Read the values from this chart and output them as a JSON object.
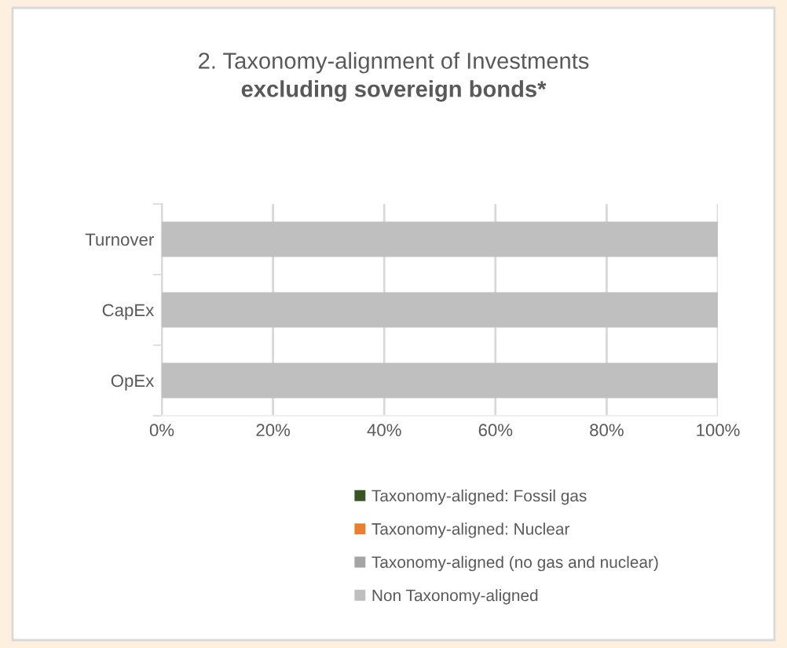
{
  "chart_data": {
    "type": "bar",
    "orientation": "horizontal",
    "stacked": true,
    "title": "2. Taxonomy-alignment of Investments",
    "subtitle": "excluding sovereign bonds*",
    "categories": [
      "Turnover",
      "CapEx",
      "OpEx"
    ],
    "series": [
      {
        "name": "Taxonomy-aligned: Fossil gas",
        "color": "#375623",
        "values": [
          0,
          0,
          0
        ]
      },
      {
        "name": "Taxonomy-aligned: Nuclear",
        "color": "#ed7d31",
        "values": [
          0,
          0,
          0
        ]
      },
      {
        "name": "Taxonomy-aligned (no gas and nuclear)",
        "color": "#a5a5a5",
        "values": [
          0,
          0,
          0
        ]
      },
      {
        "name": "Non Taxonomy-aligned",
        "color": "#bfbfbf",
        "values": [
          100,
          100,
          100
        ]
      }
    ],
    "xlim": [
      0,
      100
    ],
    "xticks": [
      {
        "value": 0,
        "label": "0%"
      },
      {
        "value": 20,
        "label": "20%"
      },
      {
        "value": 40,
        "label": "40%"
      },
      {
        "value": 60,
        "label": "60%"
      },
      {
        "value": 80,
        "label": "80%"
      },
      {
        "value": 100,
        "label": "100%"
      }
    ],
    "grid": "x",
    "legend": "bottom"
  }
}
